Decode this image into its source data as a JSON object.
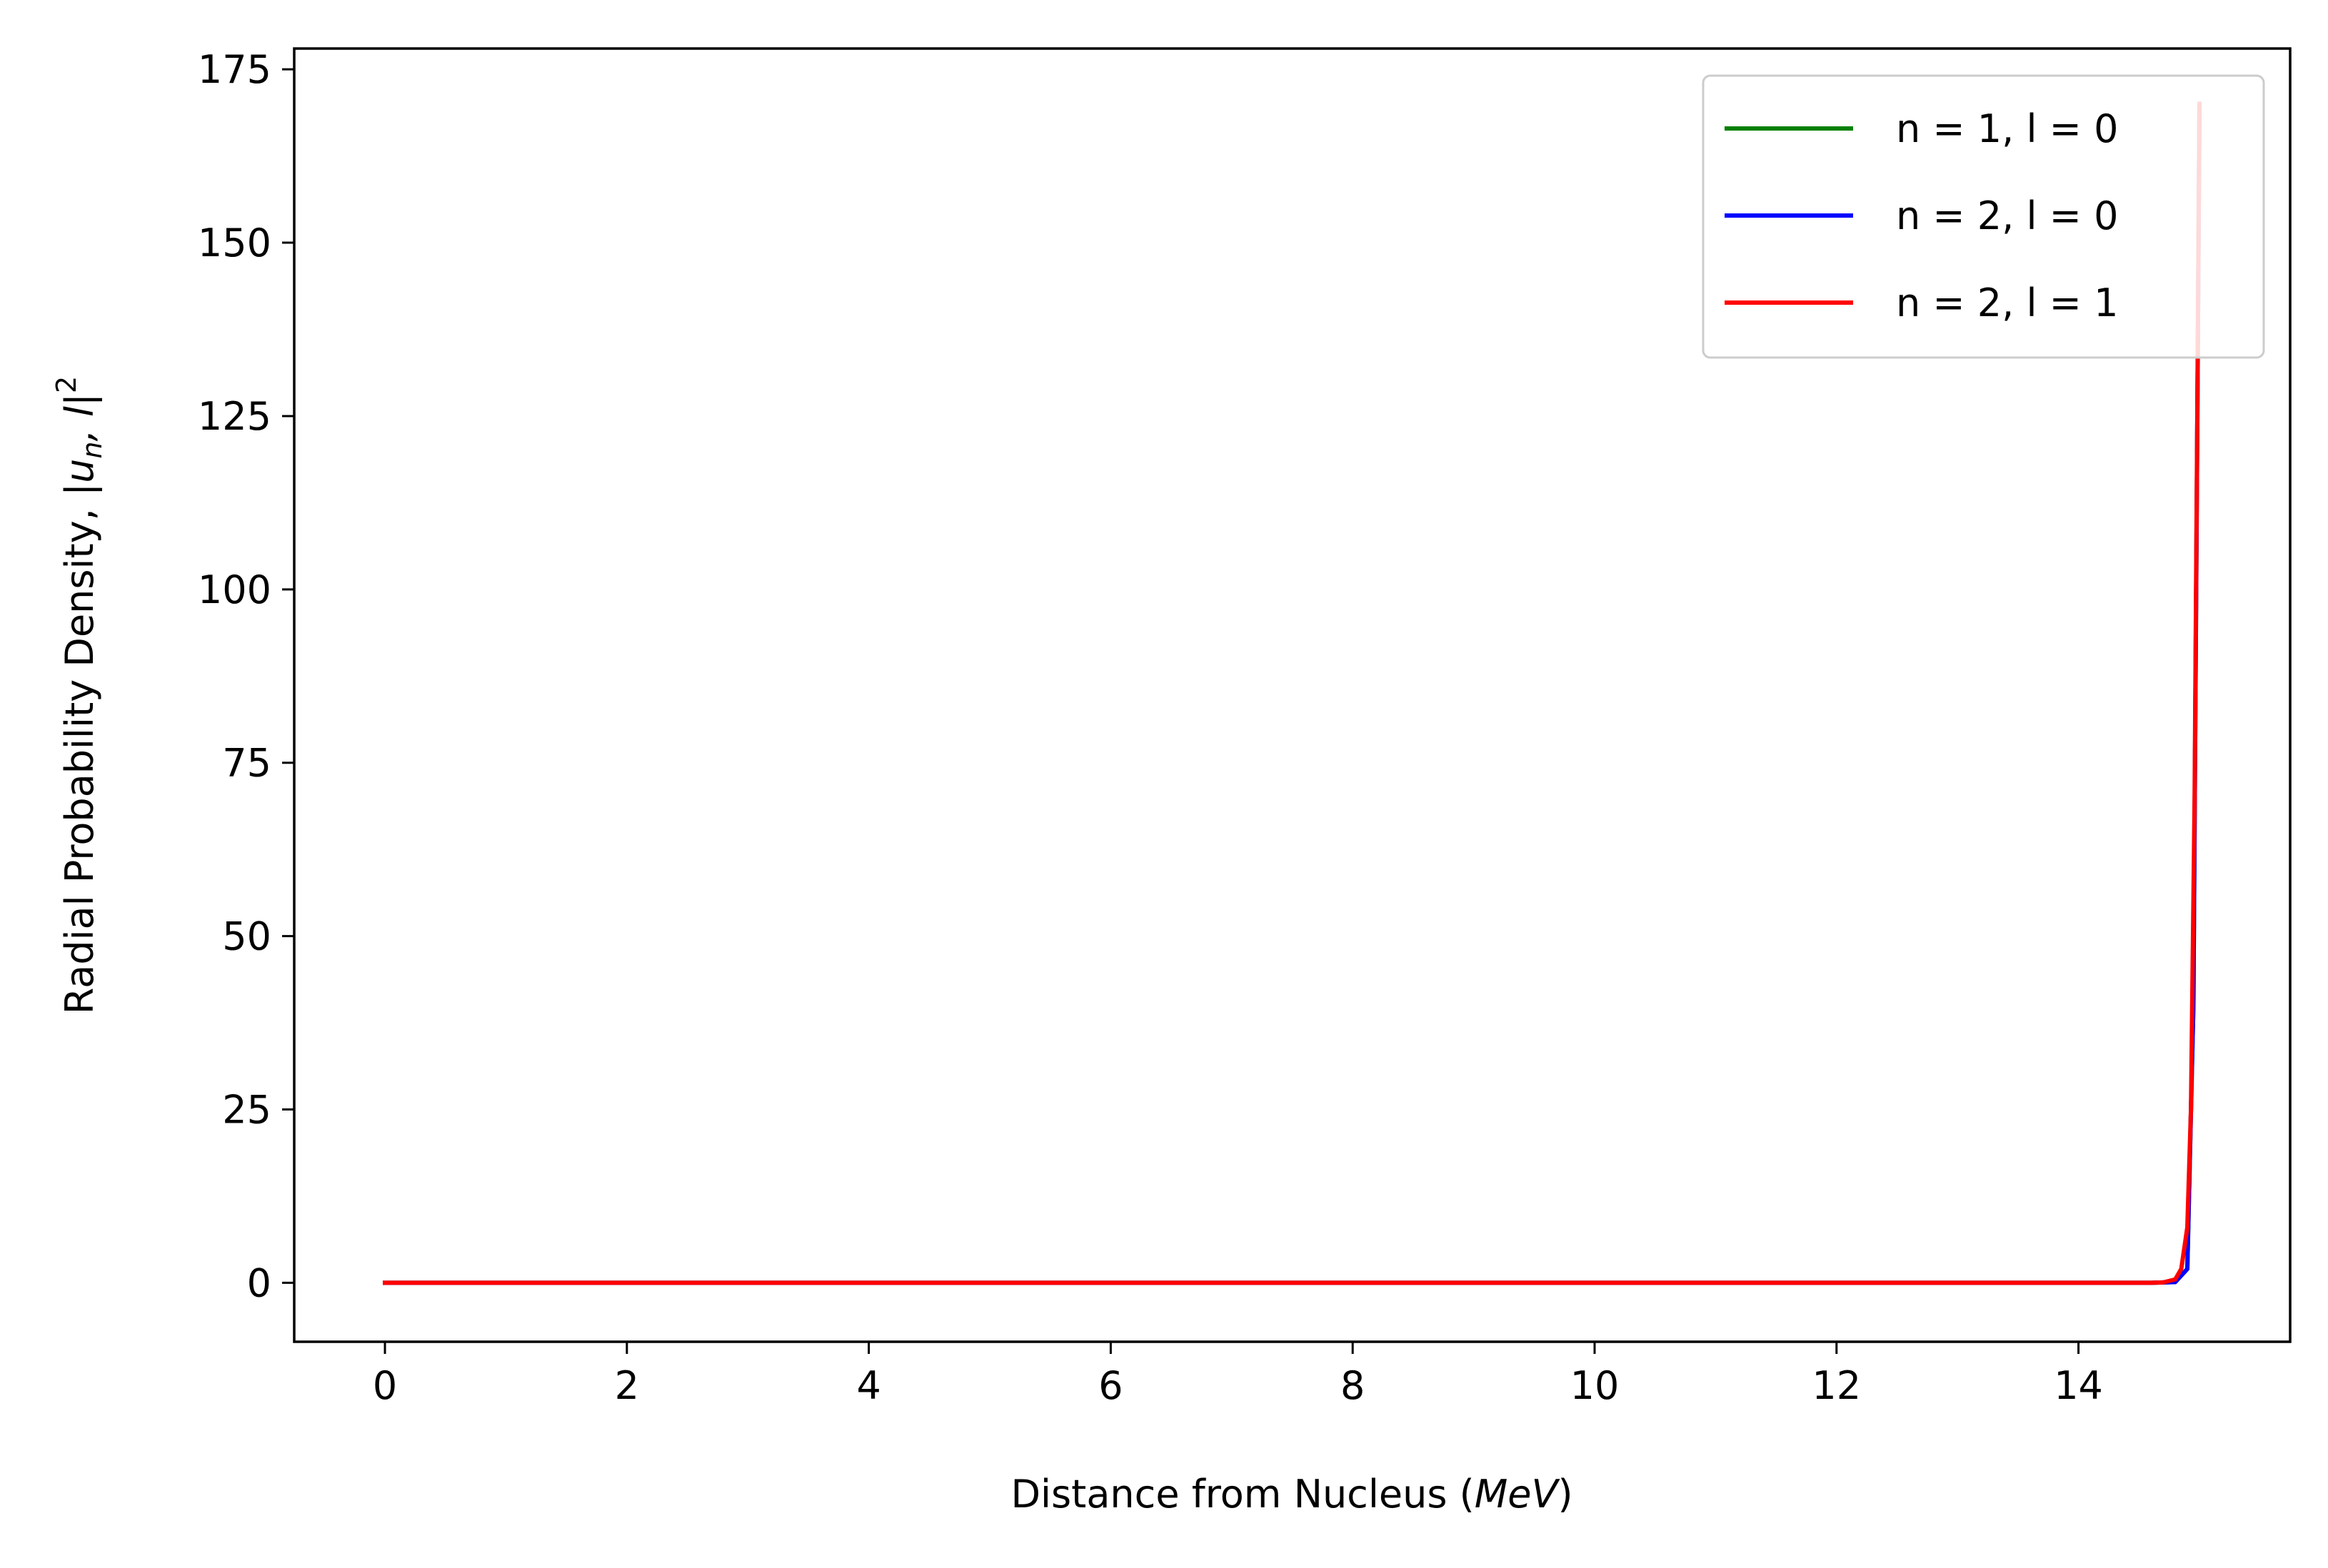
{
  "chart_data": {
    "type": "line",
    "title": "",
    "xlabel": "Distance from Nucleus",
    "xlabel_unit": "MeV",
    "ylabel": "Radial Probability Density,",
    "ylabel_expr": {
      "open": "|u",
      "sub": "n",
      "mid": ", l|",
      "sup": "2"
    },
    "xlim": [
      -0.75,
      15.75
    ],
    "ylim": [
      -8.5,
      178
    ],
    "xticks": [
      0,
      2,
      4,
      6,
      8,
      10,
      12,
      14
    ],
    "yticks": [
      0,
      25,
      50,
      75,
      100,
      125,
      150,
      175
    ],
    "grid": false,
    "legend_position": "top-right",
    "series": [
      {
        "name": "n = 1, l = 0",
        "color": "#008000",
        "x": [
          0,
          2,
          4,
          6,
          8,
          10,
          12,
          14,
          14.6,
          14.8,
          14.9,
          14.95,
          15.0
        ],
        "y": [
          0,
          0,
          0,
          0,
          0,
          0,
          0,
          0,
          0,
          0.1,
          2,
          40,
          170
        ]
      },
      {
        "name": "n = 2, l = 0",
        "color": "#0000ff",
        "x": [
          0,
          2,
          4,
          6,
          8,
          10,
          12,
          14,
          14.6,
          14.8,
          14.9,
          14.95,
          15.0
        ],
        "y": [
          0,
          0,
          0,
          0,
          0,
          0,
          0,
          0,
          0,
          0.1,
          2,
          40,
          170
        ]
      },
      {
        "name": "n = 2, l = 1",
        "color": "#ff0000",
        "x": [
          0,
          2,
          4,
          6,
          8,
          10,
          12,
          14,
          14.6,
          14.7,
          14.8,
          14.85,
          14.9,
          14.93,
          14.96,
          14.98,
          15.0
        ],
        "y": [
          0,
          0,
          0,
          0,
          0,
          0,
          0,
          0,
          0,
          0.05,
          0.5,
          2,
          8,
          25,
          70,
          120,
          170
        ]
      }
    ]
  }
}
